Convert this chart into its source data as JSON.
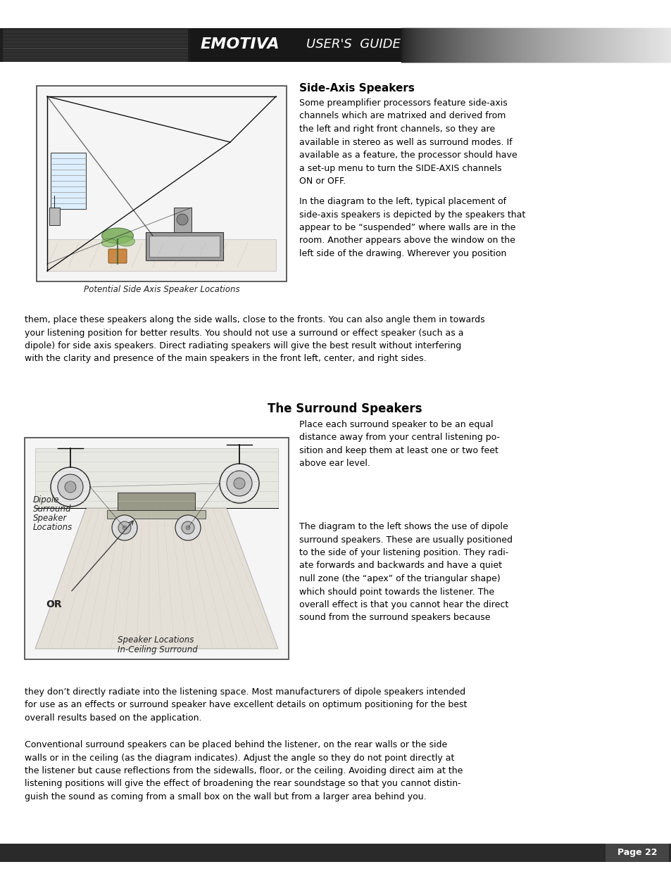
{
  "page_background": "#ffffff",
  "header_bar_color": "#1a1a1a",
  "header_left_color": "#3a3a3a",
  "header_text": "USER'S  GUIDE",
  "header_brand": "EMOTIVA",
  "footer_bar_color": "#2a2a2a",
  "footer_text": "Page 22",
  "title1": "Side-Axis Speakers",
  "title2": "The Surround Speakers",
  "body_text_color": "#000000",
  "caption1": "Potential Side Axis Speaker Locations",
  "caption2_line1": "Dipole",
  "caption2_line2": "Surround",
  "caption2_line3": "Speaker",
  "caption2_line4": "Locations",
  "caption3": "OR",
  "caption4_line1": "In-Ceiling Surround",
  "caption4_line2": "Speaker Locations",
  "font_size_title": 11,
  "font_size_body": 9.0,
  "font_size_caption": 8.5,
  "font_size_header": 13
}
